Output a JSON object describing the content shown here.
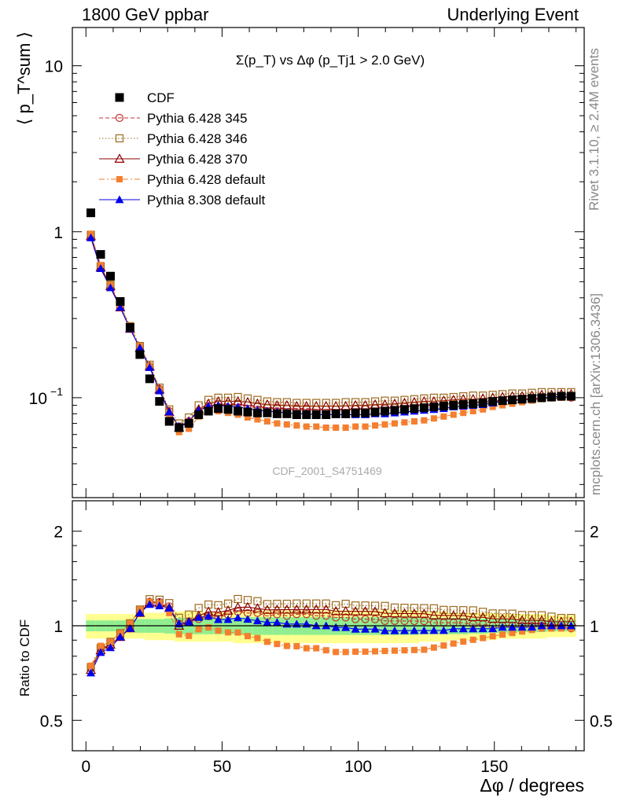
{
  "header": {
    "left": "1800 GeV ppbar",
    "right": "Underlying Event"
  },
  "side_labels": {
    "rivet": "Rivet 3.1.10, ≥ 2.4M events",
    "mcplots": "mcplots.cern.ch [arXiv:1306.3436]"
  },
  "analysis_id": "CDF_2001_S4751469",
  "chart_data": [
    {
      "type": "scatter",
      "panel": "main",
      "title": "Σ(p_T) vs Δφ (p_Tj1 > 2.0 GeV)",
      "ylabel": "⟨ p_T^sum ⟩",
      "xlabel": "",
      "xlim": [
        -5,
        183
      ],
      "ylim": [
        0.025,
        17
      ],
      "yscale": "log",
      "yticks_labeled": [
        "1",
        "10"
      ],
      "legend_position": "top-left",
      "x": [
        1.8,
        5.4,
        9.0,
        12.6,
        16.2,
        19.8,
        23.4,
        27.0,
        30.6,
        34.2,
        37.8,
        41.4,
        45.0,
        48.6,
        52.2,
        55.8,
        59.4,
        63.0,
        66.6,
        70.2,
        73.8,
        77.4,
        81.0,
        84.6,
        88.2,
        91.8,
        95.4,
        99.0,
        102.6,
        106.2,
        109.8,
        113.4,
        117.0,
        120.6,
        124.2,
        127.8,
        131.4,
        135.0,
        138.6,
        142.2,
        145.8,
        149.4,
        153.0,
        156.6,
        160.2,
        163.8,
        167.4,
        171.0,
        174.6,
        178.2
      ],
      "series": [
        {
          "name": "CDF",
          "color": "#000000",
          "marker": "filled-square",
          "line": "none",
          "values": [
            1.3,
            0.73,
            0.54,
            0.38,
            0.265,
            0.182,
            0.13,
            0.095,
            0.072,
            0.066,
            0.07,
            0.079,
            0.083,
            0.086,
            0.085,
            0.083,
            0.082,
            0.081,
            0.081,
            0.08,
            0.08,
            0.079,
            0.079,
            0.079,
            0.079,
            0.08,
            0.08,
            0.081,
            0.081,
            0.082,
            0.083,
            0.084,
            0.085,
            0.086,
            0.087,
            0.088,
            0.089,
            0.09,
            0.091,
            0.092,
            0.093,
            0.095,
            0.096,
            0.097,
            0.098,
            0.099,
            0.1,
            0.101,
            0.102,
            0.102
          ]
        },
        {
          "name": "Pythia 6.428 345",
          "color": "#c03030",
          "marker": "open-circle",
          "line": "dashed",
          "values": [
            0.95,
            0.62,
            0.47,
            0.35,
            0.26,
            0.2,
            0.155,
            0.113,
            0.083,
            0.067,
            0.072,
            0.083,
            0.089,
            0.092,
            0.092,
            0.092,
            0.09,
            0.089,
            0.087,
            0.087,
            0.086,
            0.086,
            0.086,
            0.085,
            0.085,
            0.085,
            0.085,
            0.085,
            0.085,
            0.086,
            0.086,
            0.087,
            0.088,
            0.089,
            0.09,
            0.09,
            0.091,
            0.092,
            0.093,
            0.093,
            0.094,
            0.095,
            0.096,
            0.097,
            0.098,
            0.099,
            0.1,
            0.1,
            0.101,
            0.1
          ]
        },
        {
          "name": "Pythia 6.428 346",
          "color": "#9c6a1e",
          "marker": "open-square",
          "line": "dotted",
          "values": [
            0.96,
            0.62,
            0.48,
            0.36,
            0.27,
            0.205,
            0.158,
            0.115,
            0.085,
            0.07,
            0.076,
            0.09,
            0.097,
            0.1,
            0.1,
            0.101,
            0.099,
            0.097,
            0.095,
            0.094,
            0.094,
            0.093,
            0.093,
            0.093,
            0.093,
            0.093,
            0.094,
            0.094,
            0.094,
            0.095,
            0.096,
            0.096,
            0.097,
            0.098,
            0.099,
            0.1,
            0.1,
            0.101,
            0.102,
            0.103,
            0.103,
            0.104,
            0.105,
            0.106,
            0.106,
            0.107,
            0.108,
            0.108,
            0.108,
            0.108
          ]
        },
        {
          "name": "Pythia 6.428 370",
          "color": "#8b0000",
          "marker": "open-triangle",
          "line": "solid",
          "values": [
            0.94,
            0.61,
            0.47,
            0.35,
            0.26,
            0.2,
            0.154,
            0.112,
            0.082,
            0.066,
            0.072,
            0.085,
            0.092,
            0.095,
            0.095,
            0.095,
            0.094,
            0.092,
            0.091,
            0.09,
            0.09,
            0.089,
            0.089,
            0.089,
            0.089,
            0.089,
            0.089,
            0.09,
            0.09,
            0.091,
            0.091,
            0.092,
            0.093,
            0.094,
            0.095,
            0.095,
            0.096,
            0.097,
            0.098,
            0.098,
            0.099,
            0.1,
            0.101,
            0.102,
            0.102,
            0.103,
            0.104,
            0.104,
            0.105,
            0.105
          ]
        },
        {
          "name": "Pythia 6.428 default",
          "color": "#f47f2f",
          "marker": "filled-small-square",
          "line": "dashdot",
          "values": [
            0.97,
            0.63,
            0.48,
            0.36,
            0.27,
            0.205,
            0.155,
            0.112,
            0.079,
            0.062,
            0.065,
            0.077,
            0.082,
            0.083,
            0.081,
            0.079,
            0.076,
            0.074,
            0.072,
            0.07,
            0.069,
            0.068,
            0.067,
            0.067,
            0.066,
            0.066,
            0.066,
            0.067,
            0.067,
            0.068,
            0.069,
            0.07,
            0.071,
            0.072,
            0.073,
            0.075,
            0.077,
            0.079,
            0.081,
            0.083,
            0.085,
            0.088,
            0.09,
            0.092,
            0.094,
            0.096,
            0.098,
            0.099,
            0.1,
            0.1
          ]
        },
        {
          "name": "Pythia 8.308 default",
          "color": "#0000ee",
          "marker": "filled-triangle",
          "line": "solid",
          "values": [
            0.92,
            0.6,
            0.46,
            0.35,
            0.26,
            0.2,
            0.152,
            0.11,
            0.082,
            0.067,
            0.072,
            0.084,
            0.089,
            0.09,
            0.089,
            0.088,
            0.086,
            0.084,
            0.083,
            0.082,
            0.081,
            0.08,
            0.08,
            0.079,
            0.079,
            0.079,
            0.079,
            0.079,
            0.079,
            0.08,
            0.08,
            0.081,
            0.082,
            0.083,
            0.084,
            0.085,
            0.086,
            0.088,
            0.089,
            0.09,
            0.091,
            0.093,
            0.095,
            0.096,
            0.097,
            0.098,
            0.1,
            0.101,
            0.102,
            0.102
          ]
        }
      ]
    },
    {
      "type": "scatter",
      "panel": "ratio",
      "title": "",
      "ylabel": "Ratio to CDF",
      "xlabel": "Δφ / degrees",
      "xlim": [
        -5,
        183
      ],
      "ylim": [
        0.4,
        2.5
      ],
      "yscale": "log",
      "xticks": [
        "0",
        "50",
        "100",
        "150"
      ],
      "yticks": [
        "0.5",
        "1",
        "2"
      ],
      "band_colors": {
        "inner": "#90ee90",
        "outer": "#ffff90"
      },
      "band_inner_halfwidth": [
        0.04,
        0.04,
        0.04,
        0.04,
        0.045,
        0.05,
        0.05,
        0.05,
        0.055,
        0.06,
        0.06,
        0.06,
        0.06,
        0.06,
        0.06,
        0.06,
        0.065,
        0.065,
        0.065,
        0.065,
        0.065,
        0.065,
        0.065,
        0.065,
        0.065,
        0.065,
        0.065,
        0.065,
        0.065,
        0.065,
        0.065,
        0.065,
        0.065,
        0.065,
        0.06,
        0.06,
        0.06,
        0.06,
        0.06,
        0.055,
        0.055,
        0.05,
        0.05,
        0.05,
        0.045,
        0.045,
        0.045,
        0.04,
        0.04,
        0.04
      ],
      "band_outer_halfwidth": [
        0.09,
        0.09,
        0.09,
        0.09,
        0.09,
        0.09,
        0.1,
        0.1,
        0.1,
        0.11,
        0.11,
        0.11,
        0.11,
        0.11,
        0.11,
        0.12,
        0.12,
        0.12,
        0.12,
        0.12,
        0.12,
        0.12,
        0.12,
        0.12,
        0.12,
        0.12,
        0.12,
        0.12,
        0.12,
        0.12,
        0.12,
        0.12,
        0.12,
        0.12,
        0.11,
        0.11,
        0.11,
        0.1,
        0.1,
        0.1,
        0.1,
        0.1,
        0.09,
        0.09,
        0.09,
        0.09,
        0.09,
        0.08,
        0.08,
        0.08
      ]
    }
  ]
}
